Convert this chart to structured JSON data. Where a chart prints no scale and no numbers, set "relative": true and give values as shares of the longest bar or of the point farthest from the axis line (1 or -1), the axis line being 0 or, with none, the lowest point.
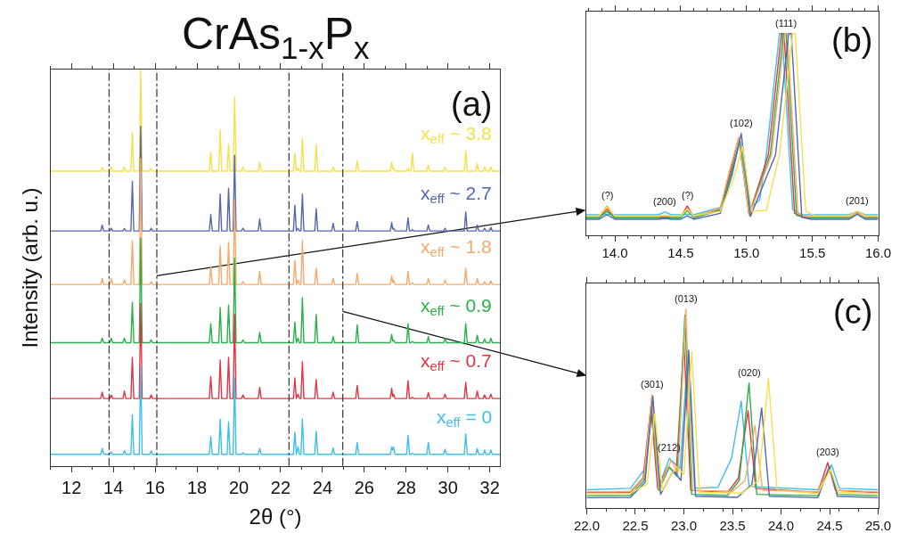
{
  "chart_data": [
    {
      "type": "line",
      "title": "CrAs$_{1-x}$P$_{x}$",
      "xlabel": "2θ (°)",
      "ylabel": "Intensity (arb. u.)",
      "relative": true,
      "xlim": [
        11,
        32.5
      ],
      "xticks": [
        12,
        14,
        16,
        18,
        20,
        22,
        24,
        26,
        28,
        30,
        32
      ],
      "x": [
        11.0,
        13.4,
        13.47,
        13.54,
        13.83,
        13.9,
        13.97,
        14.46,
        14.53,
        14.6,
        14.84,
        14.91,
        14.98,
        15.24,
        15.31,
        15.38,
        15.74,
        15.81,
        15.88,
        18.59,
        18.66,
        18.73,
        19.04,
        19.11,
        19.18,
        19.44,
        19.51,
        19.58,
        19.73,
        19.8,
        19.87,
        20.13,
        20.2,
        20.27,
        20.93,
        21.0,
        21.07,
        22.61,
        22.68,
        22.75,
        22.83,
        22.9,
        22.97,
        23.04,
        23.11,
        23.63,
        23.7,
        23.77,
        24.44,
        24.51,
        24.58,
        25.59,
        25.66,
        25.73,
        27.24,
        27.31,
        27.355,
        27.4,
        27.47,
        28.02,
        28.09,
        28.16,
        28.23,
        28.3,
        28.37,
        28.99,
        29.06,
        29.13,
        29.79,
        29.86,
        29.93,
        30.78,
        30.85,
        30.92,
        31.33,
        31.4,
        31.47,
        31.68,
        31.75,
        31.82,
        31.98,
        32.05,
        32.12,
        32.5
      ],
      "series": [
        {
          "name": "x$_{eff}$ ~ 3.8",
          "color": "#f5e04a",
          "values": [
            0.744,
            0.744,
            0.753,
            0.744,
            0.744,
            0.755,
            0.744,
            0.744,
            0.755,
            0.744,
            0.744,
            0.842,
            0.744,
            0.744,
            1,
            0.744,
            0.744,
            0.751,
            0.744,
            0.744,
            0.792,
            0.744,
            0.744,
            0.848,
            0.744,
            0.744,
            0.812,
            0.744,
            0.744,
            0.93,
            0.744,
            0.744,
            0.755,
            0.744,
            0.744,
            0.766,
            0.744,
            0.744,
            0.789,
            0.744,
            0.751,
            0.744,
            0.744,
            0.827,
            0.744,
            0.744,
            0.811,
            0.744,
            0.744,
            0.755,
            0.744,
            0.744,
            0.77,
            0.744,
            0.744,
            0.766,
            0.75,
            0.751,
            0.744,
            0.744,
            0.751,
            0.744,
            0.744,
            0.79,
            0.744,
            0.744,
            0.759,
            0.744,
            0.744,
            0.753,
            0.744,
            0.744,
            0.796,
            0.744,
            0.744,
            0.763,
            0.744,
            0.744,
            0.755,
            0.744,
            0.744,
            0.755,
            0.744,
            0.744
          ]
        },
        {
          "name": "x$_{eff}$ ~ 2.7",
          "color": "#5566b0",
          "values": [
            0.593,
            0.593,
            0.608,
            0.593,
            0.593,
            0.6,
            0.593,
            0.593,
            0.599,
            0.593,
            0.593,
            0.718,
            0.593,
            0.593,
            0.857,
            0.593,
            0.593,
            0.6,
            0.593,
            0.593,
            0.635,
            0.593,
            0.593,
            0.686,
            0.593,
            0.593,
            0.701,
            0.593,
            0.593,
            0.784,
            0.593,
            0.593,
            0.6,
            0.593,
            0.593,
            0.623,
            0.593,
            0.593,
            0.658,
            0.593,
            0.6,
            0.593,
            0.593,
            0.686,
            0.593,
            0.593,
            0.649,
            0.593,
            0.593,
            0.612,
            0.593,
            0.593,
            0.617,
            0.593,
            0.593,
            0.614,
            0.598,
            0.6,
            0.593,
            0.593,
            0.626,
            0.593,
            0.593,
            0.596,
            0.593,
            0.593,
            0.608,
            0.593,
            0.593,
            0.6,
            0.593,
            0.593,
            0.641,
            0.593,
            0.593,
            0.608,
            0.593,
            0.593,
            0.6,
            0.593,
            0.593,
            0.602,
            0.593,
            0.593
          ]
        },
        {
          "name": "x$_{eff}$ ~ 1.8",
          "color": "#f5a96a",
          "values": [
            0.458,
            0.458,
            0.473,
            0.458,
            0.458,
            0.473,
            0.458,
            0.458,
            0.469,
            0.458,
            0.458,
            0.568,
            0.458,
            0.458,
            0.775,
            0.458,
            0.458,
            0.465,
            0.458,
            0.458,
            0.503,
            0.458,
            0.458,
            0.555,
            0.458,
            0.458,
            0.564,
            0.458,
            0.458,
            0.671,
            0.458,
            0.458,
            0.465,
            0.458,
            0.458,
            0.491,
            0.458,
            0.458,
            0.519,
            0.458,
            0.469,
            0.458,
            0.458,
            0.569,
            0.458,
            0.458,
            0.499,
            0.458,
            0.458,
            0.473,
            0.458,
            0.458,
            0.486,
            0.458,
            0.458,
            0.48,
            0.463,
            0.469,
            0.458,
            0.458,
            0.491,
            0.458,
            0.458,
            0.462,
            0.458,
            0.458,
            0.473,
            0.458,
            0.458,
            0.469,
            0.458,
            0.458,
            0.499,
            0.458,
            0.458,
            0.473,
            0.458,
            0.458,
            0.465,
            0.458,
            0.458,
            0.467,
            0.458,
            0.458
          ]
        },
        {
          "name": "x$_{eff}$ ~ 0.9",
          "color": "#2ab04a",
          "values": [
            0.311,
            0.311,
            0.322,
            0.311,
            0.311,
            0.322,
            0.311,
            0.311,
            0.322,
            0.311,
            0.311,
            0.413,
            0.311,
            0.311,
            0.575,
            0.311,
            0.311,
            0.318,
            0.311,
            0.311,
            0.359,
            0.311,
            0.311,
            0.4,
            0.311,
            0.311,
            0.406,
            0.311,
            0.311,
            0.524,
            0.311,
            0.311,
            0.318,
            0.311,
            0.311,
            0.337,
            0.311,
            0.311,
            0.363,
            0.311,
            0.322,
            0.311,
            0.311,
            0.424,
            0.311,
            0.311,
            0.382,
            0.311,
            0.311,
            0.326,
            0.311,
            0.311,
            0.356,
            0.311,
            0.311,
            0.332,
            0.315,
            0.318,
            0.311,
            0.311,
            0.359,
            0.311,
            0.311,
            0.314,
            0.311,
            0.311,
            0.326,
            0.311,
            0.311,
            0.322,
            0.311,
            0.311,
            0.359,
            0.311,
            0.311,
            0.33,
            0.311,
            0.311,
            0.32,
            0.311,
            0.311,
            0.322,
            0.311,
            0.311
          ]
        },
        {
          "name": "x$_{eff}$ ~ 0.7",
          "color": "#e03545",
          "values": [
            0.17,
            0.17,
            0.186,
            0.17,
            0.17,
            0.179,
            0.17,
            0.17,
            0.189,
            0.17,
            0.17,
            0.274,
            0.17,
            0.17,
            0.41,
            0.17,
            0.17,
            0.179,
            0.17,
            0.17,
            0.226,
            0.17,
            0.17,
            0.267,
            0.17,
            0.17,
            0.274,
            0.17,
            0.17,
            0.382,
            0.17,
            0.17,
            0.179,
            0.17,
            0.17,
            0.198,
            0.17,
            0.17,
            0.222,
            0.17,
            0.181,
            0.17,
            0.17,
            0.263,
            0.17,
            0.17,
            0.218,
            0.17,
            0.17,
            0.186,
            0.17,
            0.17,
            0.203,
            0.17,
            0.17,
            0.196,
            0.175,
            0.181,
            0.17,
            0.17,
            0.215,
            0.17,
            0.17,
            0.173,
            0.17,
            0.17,
            0.185,
            0.17,
            0.17,
            0.181,
            0.17,
            0.17,
            0.211,
            0.17,
            0.17,
            0.189,
            0.17,
            0.17,
            0.179,
            0.17,
            0.17,
            0.181,
            0.17,
            0.17
          ]
        },
        {
          "name": "x$_{eff}$ = 0",
          "color": "#3cbfec",
          "values": [
            0.029,
            0.029,
            0.044,
            0.029,
            0.029,
            0.035,
            0.029,
            0.029,
            0.038,
            0.029,
            0.029,
            0.129,
            0.029,
            0.029,
            0.252,
            0.029,
            0.029,
            0.038,
            0.029,
            0.029,
            0.074,
            0.029,
            0.029,
            0.118,
            0.029,
            0.029,
            0.111,
            0.029,
            0.029,
            0.222,
            0.029,
            0.029,
            0.033,
            0.029,
            0.029,
            0.044,
            0.029,
            0.029,
            0.085,
            0.029,
            0.048,
            0.029,
            0.029,
            0.118,
            0.029,
            0.029,
            0.088,
            0.029,
            0.029,
            0.045,
            0.029,
            0.029,
            0.059,
            0.029,
            0.029,
            0.048,
            0.04,
            0.048,
            0.029,
            0.029,
            0.077,
            0.029,
            0.029,
            0.032,
            0.029,
            0.029,
            0.059,
            0.029,
            0.029,
            0.042,
            0.029,
            0.029,
            0.081,
            0.029,
            0.029,
            0.044,
            0.029,
            0.029,
            0.04,
            0.029,
            0.029,
            0.04,
            0.029,
            0.029
          ]
        }
      ],
      "ref_lines": [
        {
          "axis": "x",
          "value": 13.8,
          "color": "#333333"
        },
        {
          "axis": "x",
          "value": 16.08,
          "color": "#333333"
        },
        {
          "axis": "x",
          "value": 22.4,
          "color": "#333333"
        },
        {
          "axis": "x",
          "value": 24.97,
          "color": "#333333"
        }
      ],
      "annotations": [
        "(a)"
      ]
    },
    {
      "type": "line",
      "relative": true,
      "xlim": [
        13.78,
        16
      ],
      "xticks": [
        {
          "value": 14,
          "label": "14.0"
        },
        14.5,
        {
          "value": 15,
          "label": "15.0"
        },
        15.5,
        {
          "value": 16,
          "label": "16.0"
        }
      ],
      "series": [
        {
          "color": "#3cbfec",
          "x": [
            13.78,
            13.88,
            13.94,
            14.0,
            14.33,
            14.38,
            14.43,
            14.5,
            14.55,
            14.6,
            14.8,
            14.88,
            14.95,
            15.03,
            15.1,
            15.15,
            15.25,
            15.27,
            15.35,
            15.42,
            15.78,
            15.84,
            15.9,
            16.0
          ],
          "values": [
            0.103,
            0.103,
            0.106,
            0.103,
            0.103,
            0.117,
            0.103,
            0.103,
            0.106,
            0.103,
            0.14,
            0.3,
            0.477,
            0.139,
            0.176,
            0.4,
            1,
            1,
            0.13,
            0.103,
            0.103,
            0.12,
            0.103,
            0.103
          ]
        },
        {
          "color": "#e03545",
          "x": [
            13.78,
            13.88,
            13.94,
            14.0,
            14.33,
            14.38,
            14.43,
            14.5,
            14.55,
            14.6,
            14.8,
            14.87,
            14.94,
            15.02,
            15.165,
            15.265,
            15.285,
            15.365,
            15.435,
            15.78,
            15.84,
            15.9,
            16.0
          ],
          "values": [
            0.091,
            0.091,
            0.132,
            0.091,
            0.091,
            0.095,
            0.091,
            0.091,
            0.147,
            0.091,
            0.13,
            0.3,
            0.484,
            0.103,
            0.4,
            1,
            1,
            0.11,
            0.091,
            0.091,
            0.117,
            0.091,
            0.091
          ]
        },
        {
          "color": "#2ab04a",
          "x": [
            13.78,
            13.88,
            13.94,
            14.0,
            14.33,
            14.38,
            14.43,
            14.5,
            14.55,
            14.6,
            14.8,
            14.88,
            14.95,
            15.02,
            15.18,
            15.28,
            15.3,
            15.38,
            15.45,
            15.78,
            15.84,
            15.9,
            16.0
          ],
          "values": [
            0.088,
            0.088,
            0.12,
            0.088,
            0.088,
            0.09,
            0.088,
            0.088,
            0.125,
            0.088,
            0.125,
            0.3,
            0.469,
            0.1,
            0.4,
            1,
            1,
            0.1,
            0.088,
            0.088,
            0.11,
            0.088,
            0.088
          ]
        },
        {
          "color": "#f5a96a",
          "x": [
            13.78,
            13.88,
            13.94,
            14.0,
            14.33,
            14.38,
            14.43,
            14.5,
            14.55,
            14.6,
            14.8,
            14.87,
            14.94,
            15.02,
            15.19,
            15.29,
            15.31,
            15.39,
            15.46,
            15.78,
            15.84,
            15.9,
            16.0
          ],
          "values": [
            0.094,
            0.094,
            0.147,
            0.094,
            0.094,
            0.1,
            0.094,
            0.094,
            0.135,
            0.094,
            0.135,
            0.32,
            0.484,
            0.1,
            0.4,
            1,
            1,
            0.11,
            0.094,
            0.094,
            0.11,
            0.094,
            0.094
          ]
        },
        {
          "color": "#5566b0",
          "x": [
            13.78,
            13.88,
            13.94,
            14.0,
            14.33,
            14.38,
            14.43,
            14.5,
            14.55,
            14.6,
            14.8,
            14.89,
            14.96,
            15.03,
            15.22,
            15.32,
            15.34,
            15.42,
            15.49,
            15.78,
            15.84,
            15.9,
            16.0
          ],
          "values": [
            0.081,
            0.081,
            0.103,
            0.081,
            0.081,
            0.085,
            0.081,
            0.081,
            0.098,
            0.081,
            0.11,
            0.3,
            0.506,
            0.095,
            0.4,
            1,
            1,
            0.09,
            0.081,
            0.081,
            0.106,
            0.081,
            0.081
          ]
        },
        {
          "color": "#f5e04a",
          "x": [
            13.78,
            13.88,
            13.94,
            14.0,
            14.33,
            14.38,
            14.43,
            14.5,
            14.55,
            14.6,
            14.8,
            14.9,
            14.97,
            15.04,
            15.15,
            15.25,
            15.35,
            15.37,
            15.45,
            15.52,
            15.78,
            15.84,
            15.9,
            16.0
          ],
          "values": [
            0.098,
            0.098,
            0.139,
            0.098,
            0.098,
            0.1,
            0.098,
            0.098,
            0.132,
            0.098,
            0.12,
            0.28,
            0.44,
            0.12,
            0.125,
            0.4,
            1,
            1,
            0.12,
            0.098,
            0.098,
            0.12,
            0.098,
            0.098
          ]
        }
      ],
      "annotations": [
        "(b)",
        {
          "text": "(?)",
          "x": 13.94,
          "y": 0.147
        },
        {
          "text": "(200)",
          "x": 14.38,
          "y": 0.117
        },
        {
          "text": "(?)",
          "x": 14.55,
          "y": 0.147
        },
        {
          "text": "(102)",
          "x": 14.96,
          "y": 0.506
        },
        {
          "text": "(111)",
          "x": 15.3,
          "y": 1
        },
        {
          "text": "(201)",
          "x": 15.84,
          "y": 0.12
        }
      ]
    },
    {
      "type": "line",
      "relative": true,
      "xlim": [
        22,
        25
      ],
      "xticks": [
        {
          "value": 22,
          "label": "22.0"
        },
        22.5,
        {
          "value": 23,
          "label": "23.0"
        },
        23.5,
        {
          "value": 24,
          "label": "24.0"
        },
        24.5,
        {
          "value": 25,
          "label": "25.0"
        }
      ],
      "series": [
        {
          "color": "#3cbfec",
          "x": [
            22.0,
            22.45,
            22.6,
            22.68,
            22.75,
            22.85,
            22.96,
            23.04,
            23.11,
            23.35,
            23.49,
            23.59,
            23.67,
            24.38,
            24.52,
            24.6,
            25.0
          ],
          "values": [
            0.093,
            0.1,
            0.2,
            0.526,
            0.12,
            0.25,
            0.2,
            0.776,
            0.1,
            0.105,
            0.25,
            0.538,
            0.11,
            0.093,
            0.218,
            0.1,
            0.093
          ]
        },
        {
          "color": "#e03545",
          "x": [
            22.0,
            22.45,
            22.58,
            22.66,
            22.73,
            22.84,
            22.92,
            23.0,
            23.07,
            23.45,
            23.56,
            23.66,
            23.74,
            24.38,
            24.48,
            24.56,
            25.0
          ],
          "values": [
            0.078,
            0.08,
            0.15,
            0.512,
            0.1,
            0.21,
            0.17,
            0.832,
            0.09,
            0.08,
            0.15,
            0.49,
            0.1,
            0.08,
            0.229,
            0.09,
            0.078
          ]
        },
        {
          "color": "#2ab04a",
          "x": [
            22.0,
            22.45,
            22.59,
            22.67,
            22.74,
            22.85,
            22.93,
            23.01,
            23.08,
            23.45,
            23.57,
            23.67,
            23.75,
            24.38,
            24.5,
            24.58,
            25.0
          ],
          "values": [
            0.063,
            0.065,
            0.14,
            0.504,
            0.09,
            0.206,
            0.16,
            0.97,
            0.07,
            0.065,
            0.14,
            0.629,
            0.07,
            0.063,
            0.206,
            0.07,
            0.063
          ]
        },
        {
          "color": "#f5a96a",
          "x": [
            22.0,
            22.45,
            22.59,
            22.67,
            22.74,
            22.87,
            22.94,
            23.02,
            23.09,
            23.5,
            23.63,
            23.73,
            23.81,
            24.38,
            24.49,
            24.57,
            25.0
          ],
          "values": [
            0.082,
            0.085,
            0.16,
            0.571,
            0.1,
            0.24,
            0.18,
            1,
            0.09,
            0.085,
            0.14,
            0.416,
            0.09,
            0.082,
            0.203,
            0.09,
            0.082
          ]
        },
        {
          "color": "#5566b0",
          "x": [
            22.0,
            22.45,
            22.6,
            22.68,
            22.76,
            22.89,
            22.97,
            23.05,
            23.12,
            23.55,
            23.7,
            23.8,
            23.88,
            24.38,
            24.5,
            24.58,
            25.0
          ],
          "values": [
            0.053,
            0.055,
            0.13,
            0.563,
            0.07,
            0.188,
            0.14,
            0.794,
            0.06,
            0.055,
            0.12,
            0.504,
            0.06,
            0.053,
            0.21,
            0.06,
            0.053
          ]
        },
        {
          "color": "#f5e04a",
          "x": [
            22.0,
            22.45,
            22.62,
            22.7,
            22.78,
            22.92,
            23.0,
            23.08,
            23.16,
            23.6,
            23.77,
            23.87,
            23.96,
            24.38,
            24.51,
            24.59,
            25.0
          ],
          "values": [
            0.074,
            0.076,
            0.12,
            0.475,
            0.09,
            0.21,
            0.17,
            0.788,
            0.08,
            0.076,
            0.14,
            0.651,
            0.09,
            0.074,
            0.196,
            0.08,
            0.074
          ]
        }
      ],
      "annotations": [
        "(c)",
        {
          "text": "(301)",
          "x": 22.67,
          "y": 0.571
        },
        {
          "text": "(212)",
          "x": 22.85,
          "y": 0.25
        },
        {
          "text": "(013)",
          "x": 23.02,
          "y": 1
        },
        {
          "text": "(020)",
          "x": 23.67,
          "y": 0.629
        },
        {
          "text": "(203)",
          "x": 24.48,
          "y": 0.229
        }
      ]
    }
  ]
}
